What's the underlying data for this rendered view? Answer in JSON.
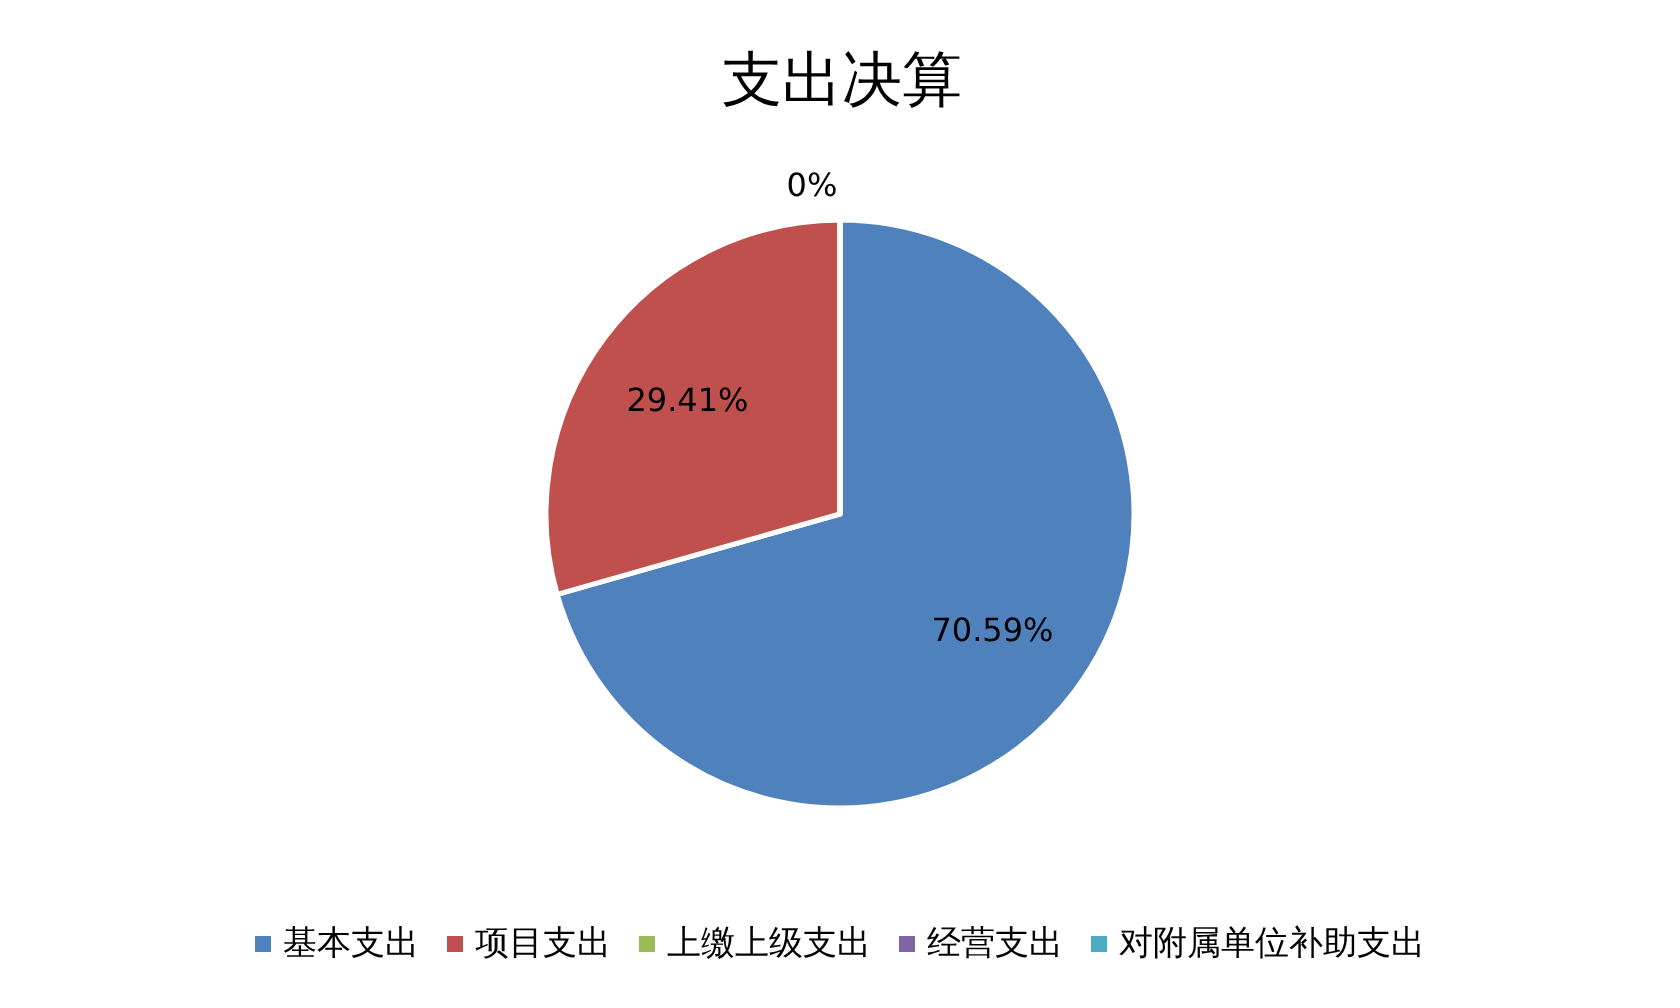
{
  "chart_data": {
    "type": "pie",
    "title": "支出决算",
    "categories": [
      "基本支出",
      "项目支出",
      "上缴上级支出",
      "经营支出",
      "对附属单位补助支出"
    ],
    "values": [
      70.59,
      29.41,
      0,
      0,
      0
    ],
    "colors": [
      "#4f81bd",
      "#c0504d",
      "#9bbb59",
      "#8064a2",
      "#4bacc6"
    ],
    "value_labels": [
      "70.59%",
      "29.41%",
      "0%",
      null,
      null
    ],
    "legend": "bottom"
  }
}
